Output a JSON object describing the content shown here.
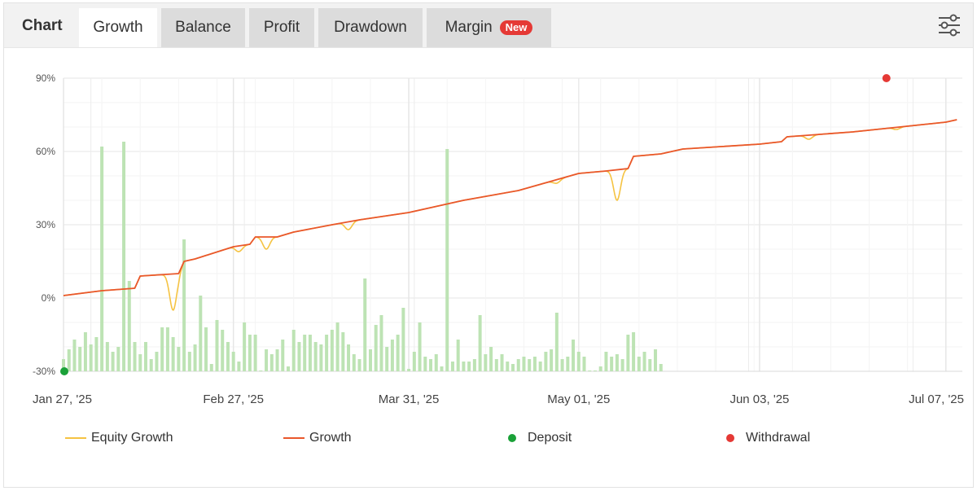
{
  "tabs": {
    "lead": "Chart",
    "items": [
      {
        "label": "Growth",
        "active": true
      },
      {
        "label": "Balance",
        "active": false
      },
      {
        "label": "Profit",
        "active": false
      },
      {
        "label": "Drawdown",
        "active": false
      },
      {
        "label": "Margin",
        "active": false,
        "badge": "New"
      }
    ],
    "settings_icon": "sliders-icon"
  },
  "legend": {
    "equity": "Equity Growth",
    "growth": "Growth",
    "deposit": "Deposit",
    "withdrawal": "Withdrawal"
  },
  "chart_data": {
    "type": "line",
    "title": "",
    "xlabel": "",
    "ylabel": "",
    "ylim": [
      -30,
      90
    ],
    "y_ticks": [
      "-30%",
      "0%",
      "30%",
      "60%",
      "90%"
    ],
    "x_ticks": [
      "Jan 27, '25",
      "Feb 27, '25",
      "Mar 31, '25",
      "May 01, '25",
      "Jun 03, '25",
      "Jul 07, '25"
    ],
    "colors": {
      "equity": "#f5c342",
      "growth": "#e9572b",
      "deposit": "#1aa138",
      "withdrawal": "#e53935",
      "bars": "#bde3b4"
    },
    "growth_series": {
      "name": "Growth",
      "x": [
        "2025-01-27",
        "2025-02-03",
        "2025-02-09",
        "2025-02-10",
        "2025-02-17",
        "2025-02-18",
        "2025-02-20",
        "2025-02-27",
        "2025-03-02",
        "2025-03-03",
        "2025-03-07",
        "2025-03-10",
        "2025-03-17",
        "2025-03-22",
        "2025-03-31",
        "2025-04-10",
        "2025-04-20",
        "2025-05-01",
        "2025-05-06",
        "2025-05-10",
        "2025-05-11",
        "2025-05-16",
        "2025-05-20",
        "2025-06-03",
        "2025-06-07",
        "2025-06-08",
        "2025-06-20",
        "2025-07-07",
        "2025-07-09"
      ],
      "y": [
        1,
        3,
        4,
        9,
        10,
        15,
        16,
        21,
        22,
        25,
        25,
        27,
        30,
        32,
        35,
        40,
        44,
        51,
        52,
        53,
        58,
        59,
        61,
        63,
        64,
        66,
        68,
        72,
        73
      ]
    },
    "equity_dips": [
      {
        "x": "2025-02-16",
        "y": -5
      },
      {
        "x": "2025-02-28",
        "y": 19
      },
      {
        "x": "2025-03-05",
        "y": 20
      },
      {
        "x": "2025-03-20",
        "y": 28
      },
      {
        "x": "2025-04-27",
        "y": 47
      },
      {
        "x": "2025-05-08",
        "y": 40
      },
      {
        "x": "2025-06-12",
        "y": 65
      },
      {
        "x": "2025-06-28",
        "y": 69
      }
    ],
    "bar_series": {
      "name": "",
      "start": "2025-01-27",
      "interval_days": 1,
      "values": [
        -25,
        -21,
        -17,
        -20,
        -14,
        -19,
        -16,
        62,
        -18,
        -22,
        -20,
        64,
        7,
        -18,
        -23,
        -18,
        -25,
        -22,
        -12,
        -12,
        -16,
        -20,
        24,
        -22,
        -19,
        1,
        -12,
        -27,
        -9,
        -13,
        -18,
        -22,
        -26,
        -10,
        -15,
        -15,
        -30,
        -21,
        -23,
        -21,
        -17,
        -28,
        -13,
        -18,
        -15,
        -15,
        -18,
        -19,
        -15,
        -13,
        -10,
        -14,
        -19,
        -23,
        -25,
        8,
        -21,
        -11,
        -7,
        -20,
        -17,
        -15,
        -4,
        -29,
        -22,
        -10,
        -24,
        -25,
        -23,
        -28,
        61,
        -26,
        -17,
        -26,
        -26,
        -25,
        -7,
        -23,
        -20,
        -25,
        -23,
        -26,
        -27,
        -25,
        -24,
        -25,
        -24,
        -26,
        -22,
        -21,
        -6,
        -25,
        -24,
        -17,
        -22,
        -24,
        -30,
        -30,
        -28,
        -22,
        -24,
        -23,
        -25,
        -15,
        -14,
        -24,
        -22,
        -25,
        -21,
        -27
      ]
    },
    "events": [
      {
        "type": "deposit",
        "x": "2025-01-27",
        "y": -30
      },
      {
        "type": "withdrawal",
        "x": "2025-06-26",
        "y": 90
      }
    ]
  }
}
